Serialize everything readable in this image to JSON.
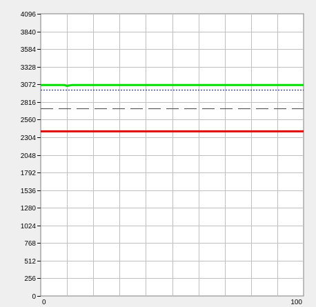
{
  "chart_data": {
    "type": "line",
    "title": "",
    "xlabel": "",
    "ylabel": "",
    "xlim": [
      0,
      100
    ],
    "ylim": [
      0,
      4096
    ],
    "x_ticks": [
      0,
      100
    ],
    "x_tick_labels": [
      "0",
      "100"
    ],
    "y_ticks": [
      0,
      256,
      512,
      768,
      1024,
      1280,
      1536,
      1792,
      2048,
      2304,
      2560,
      2816,
      3072,
      3328,
      3584,
      3840,
      4096
    ],
    "y_tick_labels": [
      "0",
      "256",
      "512",
      "768",
      "1024",
      "1280",
      "1536",
      "1792",
      "2048",
      "2304",
      "2560",
      "2816",
      "3072",
      "3328",
      "3584",
      "3840",
      "4096"
    ],
    "x_grid_count": 10,
    "grid": true,
    "series": [
      {
        "style": "solid",
        "color": "#00e000",
        "x": [
          0,
          9,
          10,
          12,
          100
        ],
        "y": [
          3062,
          3062,
          3048,
          3062,
          3062
        ]
      },
      {
        "style": "dotted",
        "color": "#0000cc",
        "x": [
          0,
          100
        ],
        "y": [
          2988,
          2988
        ]
      },
      {
        "style": "dashed",
        "color": "#404040",
        "x": [
          0,
          100
        ],
        "y": [
          2718,
          2718
        ]
      },
      {
        "style": "solid",
        "color": "#e00000",
        "x": [
          0,
          100
        ],
        "y": [
          2390,
          2390
        ]
      }
    ]
  }
}
